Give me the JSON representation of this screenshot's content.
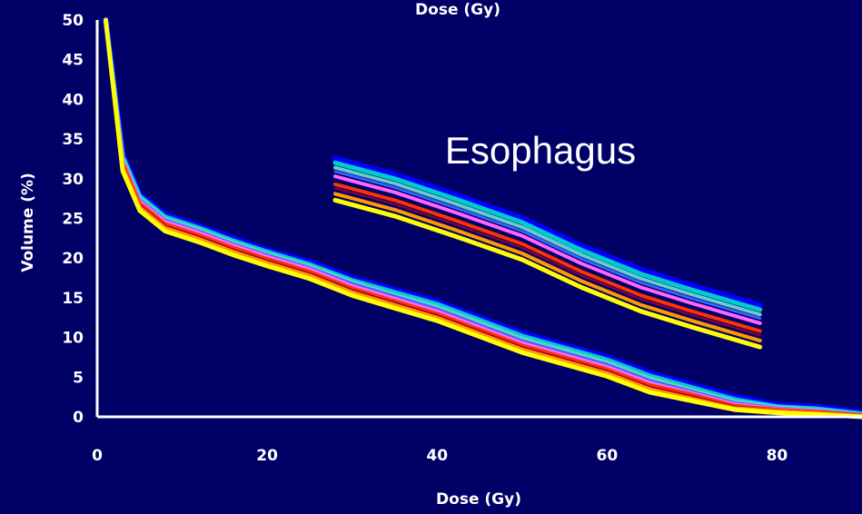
{
  "chart_data": {
    "type": "line",
    "top_label": "Dose (Gy)",
    "xlabel": "Dose (Gy)",
    "ylabel": "Volume (%)",
    "annotation": "Esophagus",
    "xlim": [
      0,
      90
    ],
    "ylim": [
      0,
      50
    ],
    "x_ticks": [
      {
        "value": 0,
        "label": "0"
      },
      {
        "value": 20,
        "label": "20"
      },
      {
        "value": 40,
        "label": "40"
      },
      {
        "value": 60,
        "label": "60"
      },
      {
        "value": 80,
        "label": "80"
      }
    ],
    "y_ticks": [
      {
        "value": 0,
        "label": "0"
      },
      {
        "value": 5,
        "label": "5"
      },
      {
        "value": 10,
        "label": "10"
      },
      {
        "value": 15,
        "label": "15"
      },
      {
        "value": 20,
        "label": "20"
      },
      {
        "value": 25,
        "label": "25"
      },
      {
        "value": 30,
        "label": "30"
      },
      {
        "value": 35,
        "label": "35"
      },
      {
        "value": 40,
        "label": "40"
      },
      {
        "value": 45,
        "label": "45"
      },
      {
        "value": 50,
        "label": "50"
      }
    ],
    "grid": false,
    "legend": "none",
    "colors": {
      "background": "#000066",
      "axes": "#ffffff",
      "text": "#ffffff"
    },
    "series": [
      {
        "group": "main",
        "color": "#0000ff",
        "width": 7,
        "x": [
          1,
          3,
          5,
          8,
          12,
          16,
          20,
          25,
          30,
          35,
          40,
          45,
          50,
          55,
          60,
          65,
          70,
          75,
          80,
          85,
          90
        ],
        "y": [
          50,
          33,
          28,
          25.5,
          24,
          22.5,
          21,
          19.5,
          17.5,
          16,
          14.5,
          12.5,
          10.5,
          9,
          7.5,
          5.5,
          4,
          2.5,
          1.5,
          1.2,
          0.5
        ]
      },
      {
        "group": "main",
        "color": "#00cccc",
        "width": 5,
        "x": [
          1,
          3,
          5,
          8,
          12,
          16,
          20,
          25,
          30,
          35,
          40,
          45,
          50,
          55,
          60,
          65,
          70,
          75,
          80,
          85,
          90
        ],
        "y": [
          50,
          32.8,
          27.8,
          25.2,
          23.8,
          22.2,
          20.8,
          19.2,
          17.2,
          15.7,
          14.2,
          12.2,
          10.2,
          8.7,
          7.2,
          5.2,
          3.7,
          2.2,
          1.3,
          1,
          0.4
        ]
      },
      {
        "group": "main",
        "color": "#66cccc",
        "width": 4,
        "x": [
          1,
          3,
          5,
          8,
          12,
          16,
          20,
          25,
          30,
          35,
          40,
          45,
          50,
          55,
          60,
          65,
          70,
          75,
          80,
          85,
          90
        ],
        "y": [
          50,
          32.6,
          27.6,
          25,
          23.6,
          22,
          20.6,
          19,
          17,
          15.4,
          13.9,
          11.9,
          9.9,
          8.4,
          6.9,
          4.9,
          3.4,
          2,
          1.2,
          0.9,
          0.3
        ]
      },
      {
        "group": "main",
        "color": "#3366ff",
        "width": 3,
        "x": [
          1,
          3,
          5,
          8,
          12,
          16,
          20,
          25,
          30,
          35,
          40,
          45,
          50,
          55,
          60,
          65,
          70,
          75,
          80,
          85,
          90
        ],
        "y": [
          50,
          32.4,
          27.4,
          24.8,
          23.4,
          21.8,
          20.4,
          18.8,
          16.8,
          15.2,
          13.6,
          11.6,
          9.6,
          8.1,
          6.6,
          4.6,
          3.2,
          1.8,
          1.1,
          0.8,
          0.3
        ]
      },
      {
        "group": "main",
        "color": "#ff66ff",
        "width": 4,
        "x": [
          1,
          3,
          5,
          8,
          12,
          16,
          20,
          25,
          30,
          35,
          40,
          45,
          50,
          55,
          60,
          65,
          70,
          75,
          80,
          85,
          90
        ],
        "y": [
          50,
          32.2,
          27.2,
          24.6,
          23.2,
          21.6,
          20.2,
          18.6,
          16.5,
          14.9,
          13.3,
          11.3,
          9.3,
          7.8,
          6.3,
          4.3,
          3,
          1.6,
          1,
          0.7,
          0.2
        ]
      },
      {
        "group": "main",
        "color": "#ff3300",
        "width": 4,
        "x": [
          1,
          3,
          5,
          8,
          12,
          16,
          20,
          25,
          30,
          35,
          40,
          45,
          50,
          55,
          60,
          65,
          70,
          75,
          80,
          85,
          90
        ],
        "y": [
          50,
          31.9,
          26.9,
          24.3,
          22.9,
          21.3,
          19.9,
          18.3,
          16.2,
          14.6,
          13,
          11,
          9,
          7.5,
          6,
          4,
          2.8,
          1.4,
          0.9,
          0.6,
          0.2
        ]
      },
      {
        "group": "main",
        "color": "#990033",
        "width": 2,
        "x": [
          1,
          3,
          5,
          8,
          12,
          16,
          20,
          25,
          30,
          35,
          40,
          45,
          50,
          55,
          60,
          65,
          70,
          75,
          80,
          85,
          90
        ],
        "y": [
          50,
          31.7,
          26.7,
          24.1,
          22.7,
          21.1,
          19.7,
          18.1,
          16,
          14.4,
          12.8,
          10.8,
          8.8,
          7.3,
          5.8,
          3.8,
          2.6,
          1.3,
          0.8,
          0.5,
          0.1
        ]
      },
      {
        "group": "main",
        "color": "#ff9900",
        "width": 4,
        "x": [
          1,
          3,
          5,
          8,
          12,
          16,
          20,
          25,
          30,
          35,
          40,
          45,
          50,
          55,
          60,
          65,
          70,
          75,
          80,
          85,
          90
        ],
        "y": [
          50,
          31.4,
          26.4,
          23.8,
          22.4,
          20.8,
          19.4,
          17.8,
          15.7,
          14.1,
          12.5,
          10.5,
          8.5,
          7,
          5.5,
          3.5,
          2.3,
          1.1,
          0.7,
          0.4,
          0.1
        ]
      },
      {
        "group": "main",
        "color": "#ffff00",
        "width": 5,
        "x": [
          1,
          3,
          5,
          8,
          12,
          16,
          20,
          25,
          30,
          35,
          40,
          45,
          50,
          55,
          60,
          65,
          70,
          75,
          80,
          85,
          90
        ],
        "y": [
          50,
          31,
          26,
          23.4,
          22,
          20.4,
          19,
          17.4,
          15.3,
          13.7,
          12.1,
          10.1,
          8.1,
          6.6,
          5.1,
          3.1,
          2,
          0.9,
          0.5,
          0.3,
          0
        ]
      },
      {
        "group": "esophagus",
        "color": "#0000ff",
        "width": 7,
        "x": [
          28,
          35,
          42,
          50,
          57,
          64,
          70,
          78
        ],
        "y": [
          32.5,
          30.5,
          28,
          25,
          21.5,
          18.5,
          16.5,
          14
        ]
      },
      {
        "group": "esophagus",
        "color": "#00cccc",
        "width": 5,
        "x": [
          28,
          35,
          42,
          50,
          57,
          64,
          70,
          78
        ],
        "y": [
          32,
          30,
          27.5,
          24.5,
          21,
          18,
          16,
          13.5
        ]
      },
      {
        "group": "esophagus",
        "color": "#66cccc",
        "width": 4,
        "x": [
          28,
          35,
          42,
          50,
          57,
          64,
          70,
          78
        ],
        "y": [
          31.4,
          29.4,
          26.9,
          23.9,
          20.4,
          17.4,
          15.4,
          12.9
        ]
      },
      {
        "group": "esophagus",
        "color": "#3366ff",
        "width": 3,
        "x": [
          28,
          35,
          42,
          50,
          57,
          64,
          70,
          78
        ],
        "y": [
          30.9,
          28.9,
          26.4,
          23.4,
          19.9,
          16.9,
          14.9,
          12.4
        ]
      },
      {
        "group": "esophagus",
        "color": "#ff66ff",
        "width": 4,
        "x": [
          28,
          35,
          42,
          50,
          57,
          64,
          70,
          78
        ],
        "y": [
          30.3,
          28.3,
          25.8,
          22.8,
          19.3,
          16.3,
          14.3,
          11.8
        ]
      },
      {
        "group": "esophagus",
        "color": "#ff3300",
        "width": 4,
        "x": [
          28,
          35,
          42,
          50,
          57,
          64,
          70,
          78
        ],
        "y": [
          29.3,
          27.3,
          24.8,
          21.8,
          18.3,
          15.3,
          13.3,
          10.8
        ]
      },
      {
        "group": "esophagus",
        "color": "#990033",
        "width": 2,
        "x": [
          28,
          35,
          42,
          50,
          57,
          64,
          70,
          78
        ],
        "y": [
          28.8,
          26.8,
          24.3,
          21.3,
          17.8,
          14.8,
          12.8,
          10.3
        ]
      },
      {
        "group": "esophagus",
        "color": "#ff9900",
        "width": 4,
        "x": [
          28,
          35,
          42,
          50,
          57,
          64,
          70,
          78
        ],
        "y": [
          28.1,
          26.1,
          23.6,
          20.6,
          17.1,
          14.1,
          12.1,
          9.6
        ]
      },
      {
        "group": "esophagus",
        "color": "#ffff00",
        "width": 5,
        "x": [
          28,
          35,
          42,
          50,
          57,
          64,
          70,
          78
        ],
        "y": [
          27.3,
          25.3,
          22.8,
          19.8,
          16.3,
          13.3,
          11.3,
          8.8
        ]
      }
    ]
  }
}
